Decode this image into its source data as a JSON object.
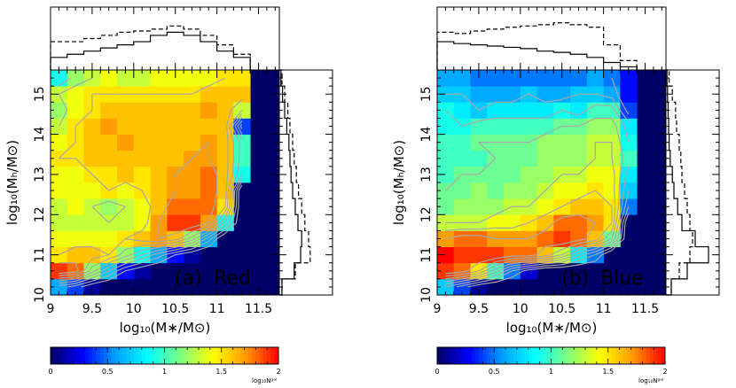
{
  "figure": {
    "panels": [
      {
        "panel_label": "(a)",
        "name": "Red",
        "xlabel": "log₁₀(M∗/M⊙)",
        "ylabel": "log₁₀(Mₕ/M⊙)"
      },
      {
        "panel_label": "(b)",
        "name": "Blue",
        "xlabel": "log₁₀(M∗/M⊙)",
        "ylabel": "log₁₀(Mₕ/M⊙)"
      }
    ],
    "colorbar": {
      "label": "log₁₀Nᵍᵃˡ",
      "ticks": [
        "0",
        "0.5",
        "1",
        "1.5",
        "2"
      ],
      "range": [
        0,
        2
      ]
    },
    "colors": {
      "background_cell": "#000066",
      "contour": "#a8a8a8",
      "colormap": [
        "#000066",
        "#0000ff",
        "#00a0ff",
        "#00ffff",
        "#7fff80",
        "#ffff00",
        "#ff9900",
        "#ff0000"
      ]
    }
  },
  "chart_data": [
    {
      "type": "heatmap",
      "title": "",
      "xlabel": "log10(M*/Msun)",
      "ylabel": "log10(Mh/Msun)",
      "xlim": [
        9.0,
        11.75
      ],
      "ylim": [
        10.0,
        15.6
      ],
      "xticks": [
        9,
        9.5,
        10,
        10.5,
        11,
        11.5
      ],
      "yticks": [
        10,
        11,
        12,
        13,
        14,
        15
      ],
      "cell_size": [
        0.2,
        0.4
      ],
      "x_bins": [
        9.0,
        9.2,
        9.4,
        9.6,
        9.8,
        10.0,
        10.2,
        10.4,
        10.6,
        10.8,
        11.0,
        11.2
      ],
      "y_bins": [
        10.0,
        10.4,
        10.8,
        11.2,
        11.6,
        12.0,
        12.4,
        12.8,
        13.2,
        13.6,
        14.0,
        14.4,
        14.8,
        15.2
      ],
      "z_log10_Ngal": [
        [
          0.6,
          0.4,
          0.1,
          0,
          0,
          0,
          0,
          0,
          0,
          0,
          0,
          0
        ],
        [
          1.9,
          1.8,
          1.2,
          0.7,
          0.3,
          0.1,
          0,
          0,
          0,
          0,
          0,
          0
        ],
        [
          1.5,
          1.6,
          1.6,
          1.5,
          1.2,
          0.9,
          0.6,
          0.3,
          0.1,
          0,
          0,
          0
        ],
        [
          1.4,
          1.4,
          1.4,
          1.4,
          1.5,
          1.6,
          1.7,
          1.6,
          1.2,
          0.6,
          0,
          0
        ],
        [
          1.3,
          1.3,
          1.3,
          1.3,
          1.3,
          1.4,
          1.7,
          1.9,
          1.9,
          1.7,
          0.9,
          0
        ],
        [
          1.3,
          1.4,
          1.3,
          1.2,
          1.3,
          1.4,
          1.6,
          1.8,
          1.8,
          1.8,
          1.5,
          0
        ],
        [
          1.4,
          1.4,
          1.4,
          1.5,
          1.4,
          1.5,
          1.6,
          1.7,
          1.7,
          1.8,
          1.6,
          0
        ],
        [
          1.4,
          1.4,
          1.5,
          1.5,
          1.6,
          1.5,
          1.6,
          1.7,
          1.7,
          1.8,
          1.6,
          0.9
        ],
        [
          1.5,
          1.5,
          1.6,
          1.6,
          1.6,
          1.6,
          1.6,
          1.6,
          1.7,
          1.7,
          1.6,
          1.0
        ],
        [
          1.4,
          1.5,
          1.6,
          1.6,
          1.7,
          1.6,
          1.6,
          1.6,
          1.6,
          1.7,
          1.6,
          1.0
        ],
        [
          1.3,
          1.5,
          1.6,
          1.7,
          1.6,
          1.6,
          1.6,
          1.6,
          1.6,
          1.6,
          1.6,
          0.4
        ],
        [
          1.2,
          1.4,
          1.5,
          1.6,
          1.6,
          1.6,
          1.6,
          1.6,
          1.6,
          1.7,
          1.6,
          1.3
        ],
        [
          1.3,
          1.4,
          1.5,
          1.5,
          1.5,
          1.5,
          1.5,
          1.5,
          1.5,
          1.6,
          1.6,
          1.6
        ],
        [
          0.9,
          1.2,
          1.3,
          1.4,
          1.3,
          1.3,
          1.4,
          1.4,
          1.4,
          1.4,
          1.5,
          1.5
        ]
      ],
      "marginal_x": {
        "solid": [
          0.2,
          0.25,
          0.3,
          0.35,
          0.4,
          0.45,
          0.55,
          0.6,
          0.55,
          0.45,
          0.3,
          0.2
        ],
        "dashed": [
          0.45,
          0.45,
          0.5,
          0.55,
          0.6,
          0.62,
          0.65,
          0.7,
          0.65,
          0.55,
          0.4,
          0.25
        ]
      },
      "marginal_y": {
        "solid": [
          0.05,
          0.28,
          0.4,
          0.42,
          0.35,
          0.3,
          0.25,
          0.22,
          0.2,
          0.18,
          0.14,
          0.1,
          0.06,
          0.03
        ],
        "dashed": [
          0.05,
          0.3,
          0.58,
          0.55,
          0.48,
          0.42,
          0.36,
          0.32,
          0.28,
          0.25,
          0.2,
          0.16,
          0.1,
          0.05
        ]
      }
    },
    {
      "type": "heatmap",
      "title": "",
      "xlabel": "log10(M*/Msun)",
      "ylabel": "log10(Mh/Msun)",
      "xlim": [
        9.0,
        11.75
      ],
      "ylim": [
        10.0,
        15.6
      ],
      "xticks": [
        9,
        9.5,
        10,
        10.5,
        11,
        11.5
      ],
      "yticks": [
        10,
        11,
        12,
        13,
        14,
        15
      ],
      "cell_size": [
        0.2,
        0.4
      ],
      "x_bins": [
        9.0,
        9.2,
        9.4,
        9.6,
        9.8,
        10.0,
        10.2,
        10.4,
        10.6,
        10.8,
        11.0,
        11.2
      ],
      "y_bins": [
        10.0,
        10.4,
        10.8,
        11.2,
        11.6,
        12.0,
        12.4,
        12.8,
        13.2,
        13.6,
        14.0,
        14.4,
        14.8,
        15.2
      ],
      "z_log10_Ngal": [
        [
          0.7,
          0.4,
          0.1,
          0,
          0,
          0,
          0,
          0,
          0,
          0,
          0,
          0
        ],
        [
          1.9,
          1.8,
          1.5,
          1.0,
          0.5,
          0.2,
          0,
          0,
          0,
          0,
          0,
          0
        ],
        [
          2.0,
          1.9,
          1.9,
          1.9,
          1.8,
          1.8,
          1.6,
          1.3,
          0.8,
          0.5,
          0,
          0
        ],
        [
          1.7,
          1.8,
          1.8,
          1.7,
          1.7,
          1.7,
          1.8,
          1.9,
          1.8,
          1.6,
          1.1,
          0
        ],
        [
          1.3,
          1.3,
          1.3,
          1.4,
          1.4,
          1.5,
          1.6,
          1.8,
          1.8,
          1.7,
          1.5,
          0
        ],
        [
          1.1,
          1.2,
          1.2,
          1.2,
          1.3,
          1.3,
          1.4,
          1.5,
          1.6,
          1.6,
          1.5,
          0.5
        ],
        [
          1.1,
          1.1,
          1.2,
          1.1,
          1.2,
          1.2,
          1.3,
          1.4,
          1.4,
          1.5,
          1.4,
          0.7
        ],
        [
          1.0,
          1.1,
          1.1,
          1.1,
          1.1,
          1.2,
          1.2,
          1.3,
          1.3,
          1.4,
          1.4,
          0.8
        ],
        [
          1.0,
          1.0,
          1.0,
          1.1,
          1.1,
          1.1,
          1.2,
          1.2,
          1.2,
          1.3,
          1.3,
          1.0
        ],
        [
          1.0,
          1.0,
          1.1,
          1.1,
          1.1,
          1.1,
          1.2,
          1.2,
          1.2,
          1.3,
          1.3,
          0.9
        ],
        [
          0.9,
          0.9,
          1.0,
          1.0,
          1.0,
          1.0,
          1.0,
          1.1,
          1.1,
          1.2,
          1.2,
          0.8
        ],
        [
          0.9,
          0.8,
          0.7,
          0.8,
          0.8,
          0.8,
          0.8,
          0.9,
          0.8,
          1.0,
          1.0,
          0.4
        ],
        [
          0.7,
          0.7,
          0.6,
          0.6,
          0.6,
          0.7,
          0.6,
          0.6,
          0.7,
          0.7,
          0.6,
          0.3
        ],
        [
          0.6,
          0.6,
          0.5,
          0.5,
          0.5,
          0.5,
          0.5,
          0.5,
          0.5,
          0.6,
          0.5,
          0.3
        ]
      ],
      "marginal_x": {
        "solid": [
          0.45,
          0.42,
          0.4,
          0.38,
          0.36,
          0.34,
          0.3,
          0.28,
          0.25,
          0.2,
          0.12,
          0.05
        ],
        "dashed": [
          0.6,
          0.58,
          0.62,
          0.65,
          0.68,
          0.7,
          0.72,
          0.75,
          0.72,
          0.68,
          0.4,
          0.15
        ]
      },
      "marginal_y": {
        "solid": [
          0.1,
          0.4,
          0.8,
          0.55,
          0.3,
          0.22,
          0.15,
          0.12,
          0.08,
          0.06,
          0.05,
          0.04,
          0.03,
          0.02
        ],
        "dashed": [
          0.1,
          0.25,
          0.45,
          0.5,
          0.45,
          0.4,
          0.35,
          0.3,
          0.28,
          0.25,
          0.2,
          0.18,
          0.12,
          0.06
        ]
      }
    }
  ]
}
